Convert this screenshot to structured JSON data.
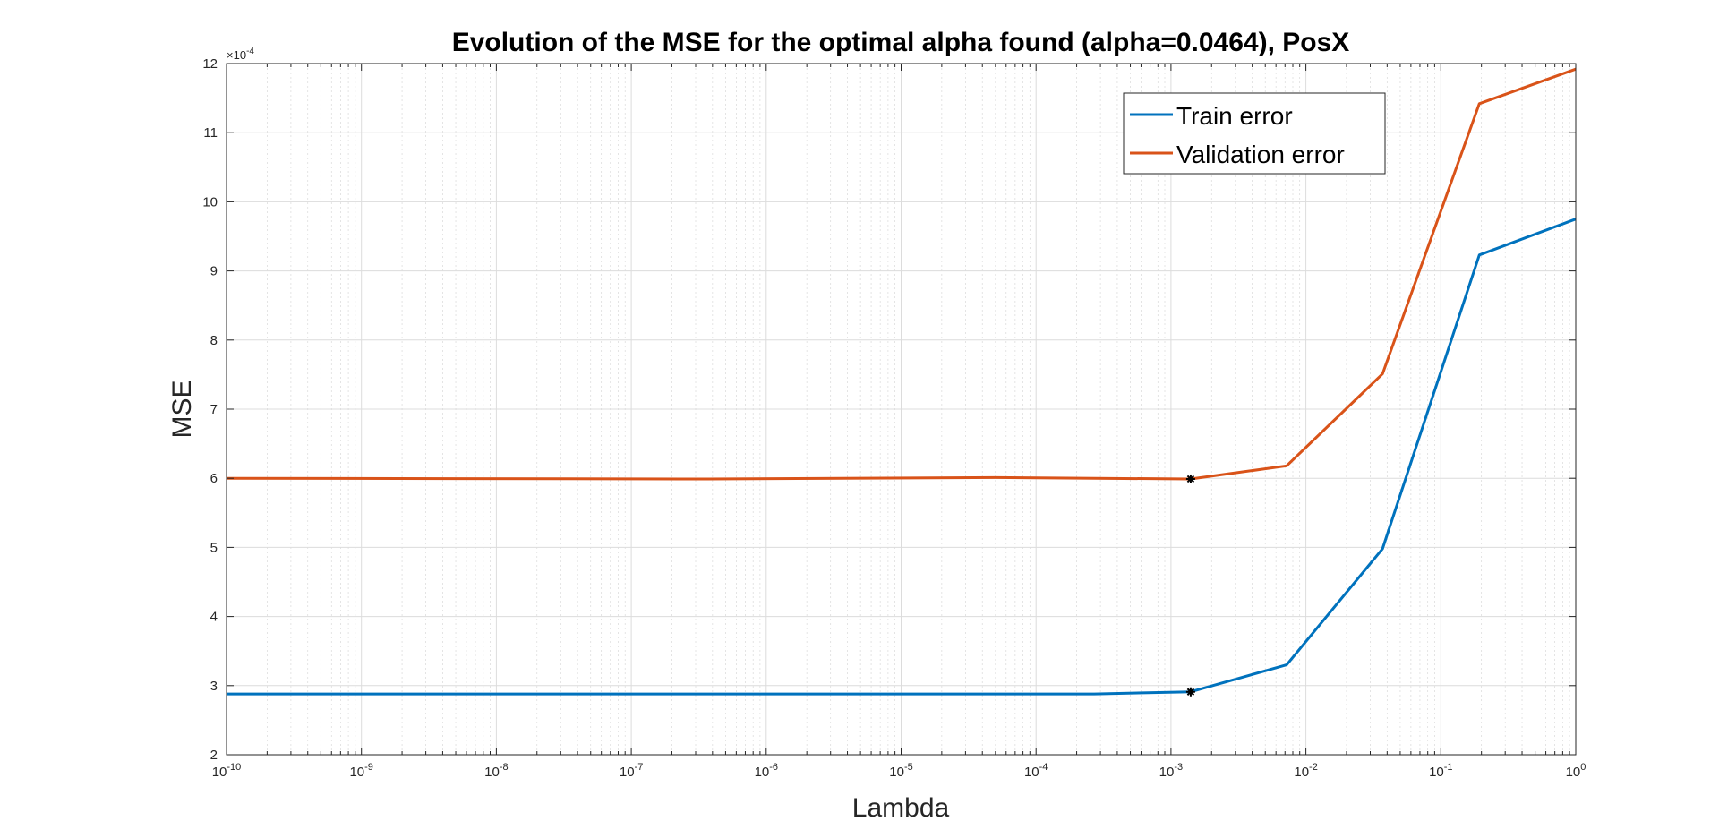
{
  "chart_data": {
    "type": "line",
    "title": "Evolution of the MSE for the optimal alpha found (alpha=0.0464), PosX",
    "xlabel": "Lambda",
    "ylabel": "MSE",
    "xscale": "log",
    "xlim": [
      1e-10,
      1
    ],
    "ylim": [
      2,
      12
    ],
    "y_multiplier": {
      "base": "×10",
      "exponent": "-4"
    },
    "x_ticks": [
      {
        "base": "10",
        "exp": "-10",
        "value": 1e-10
      },
      {
        "base": "10",
        "exp": "-9",
        "value": 1e-09
      },
      {
        "base": "10",
        "exp": "-8",
        "value": 1e-08
      },
      {
        "base": "10",
        "exp": "-7",
        "value": 1e-07
      },
      {
        "base": "10",
        "exp": "-6",
        "value": 1e-06
      },
      {
        "base": "10",
        "exp": "-5",
        "value": 1e-05
      },
      {
        "base": "10",
        "exp": "-4",
        "value": 0.0001
      },
      {
        "base": "10",
        "exp": "-3",
        "value": 0.001
      },
      {
        "base": "10",
        "exp": "-2",
        "value": 0.01
      },
      {
        "base": "10",
        "exp": "-1",
        "value": 0.1
      },
      {
        "base": "10",
        "exp": "0",
        "value": 1
      }
    ],
    "y_ticks": [
      2,
      3,
      4,
      5,
      6,
      7,
      8,
      9,
      10,
      11,
      12
    ],
    "grid": true,
    "minor_grid": true,
    "legend_position": "top-right",
    "series": [
      {
        "name": "Train error",
        "color": "#0072BD",
        "x": [
          1e-10,
          5e-05,
          0.00027,
          0.0014,
          0.0072,
          0.037,
          0.193,
          1
        ],
        "y": [
          2.88,
          2.88,
          2.88,
          2.91,
          3.3,
          4.98,
          9.23,
          9.75
        ]
      },
      {
        "name": "Validation error",
        "color": "#D95319",
        "x": [
          1e-10,
          3.7e-07,
          5e-05,
          0.0014,
          0.0072,
          0.037,
          0.193,
          1
        ],
        "y": [
          6.0,
          5.99,
          6.01,
          5.99,
          6.18,
          7.51,
          11.42,
          11.92
        ]
      }
    ],
    "markers": [
      {
        "x": 0.0014,
        "y": 2.91
      },
      {
        "x": 0.0014,
        "y": 5.99
      }
    ]
  }
}
